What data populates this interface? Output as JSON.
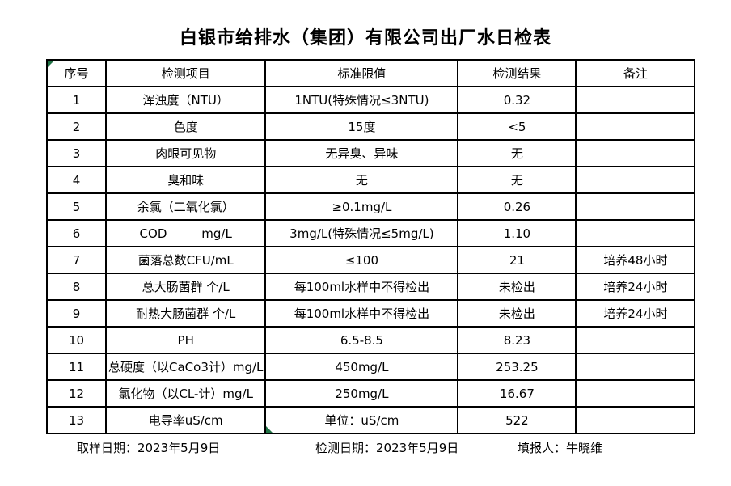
{
  "title": "白银市给排水（集团）有限公司出厂水日检表",
  "table": {
    "headers": [
      "序号",
      "检测项目",
      "标准限值",
      "检测结果",
      "备注"
    ],
    "rows": [
      [
        "1",
        "浑浊度（NTU）",
        "1NTU(特殊情况≤3NTU)",
        "0.32",
        ""
      ],
      [
        "2",
        "色度",
        "15度",
        "<5",
        ""
      ],
      [
        "3",
        "肉眼可见物",
        "无异臭、异味",
        "无",
        ""
      ],
      [
        "4",
        "臭和味",
        "无",
        "无",
        ""
      ],
      [
        "5",
        "余氯（二氧化氯）",
        "≥0.1mg/L",
        "0.26",
        ""
      ],
      [
        "6",
        "COD         mg/L",
        "3mg/L(特殊情况≤5mg/L)",
        "1.10",
        ""
      ],
      [
        "7",
        "菌落总数CFU/mL",
        "≤100",
        "21",
        "培养48小时"
      ],
      [
        "8",
        "总大肠菌群 个/L",
        "每100ml水样中不得检出",
        "未检出",
        "培养24小时"
      ],
      [
        "9",
        "耐热大肠菌群 个/L",
        "每100ml水样中不得检出",
        "未检出",
        "培养24小时"
      ],
      [
        "10",
        "PH",
        "6.5-8.5",
        "8.23",
        ""
      ],
      [
        "11",
        "总硬度（以CaCo3计）mg/L",
        "450mg/L",
        "253.25",
        ""
      ],
      [
        "12",
        "氯化物（以CL-计）mg/L",
        "250mg/L",
        "16.67",
        ""
      ],
      [
        "13",
        "电导率uS/cm",
        "单位：uS/cm",
        "522",
        ""
      ]
    ]
  },
  "footer": {
    "sampling_date": "取样日期：2023年5月9日",
    "test_date": "检测日期：2023年5月9日",
    "reporter": "填报人：牛晓维"
  },
  "markers": {
    "color": "#217346"
  }
}
